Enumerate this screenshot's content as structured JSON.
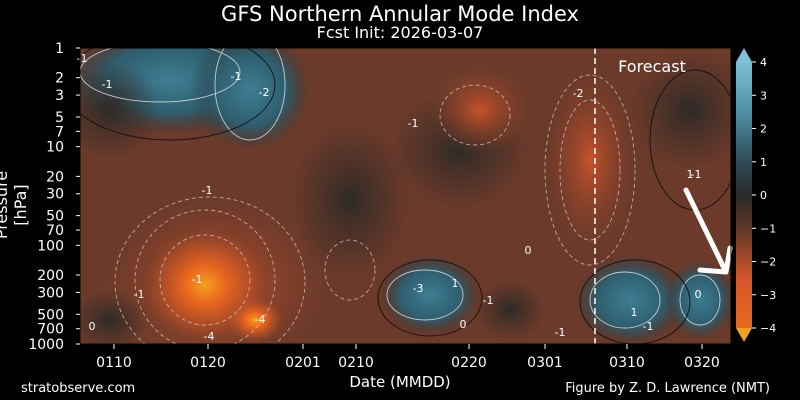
{
  "header": {
    "title": "GFS Northern Annular Mode Index",
    "subtitle": "Fcst Init: 2026-03-07"
  },
  "footer": {
    "left": "stratobserve.com",
    "right": "Figure by Z. D. Lawrence (NMT)"
  },
  "chart_data": {
    "type": "heatmap",
    "title": "GFS Northern Annular Mode Index",
    "subtitle": "Fcst Init: 2026-03-07",
    "xlabel": "Date (MMDD)",
    "ylabel": "Pressure [hPa]",
    "x_ticks": [
      "0110",
      "0120",
      "0201",
      "0210",
      "0220",
      "0301",
      "0310",
      "0320"
    ],
    "y_ticks": [
      1,
      2,
      3,
      5,
      7,
      10,
      20,
      30,
      50,
      70,
      100,
      200,
      300,
      500,
      700,
      1000
    ],
    "y_scale": "log",
    "y_inverted": true,
    "colorbar": {
      "ticks": [
        4,
        3,
        2,
        1,
        0,
        -1,
        -2,
        -3,
        -4
      ],
      "range": [
        -4,
        4
      ],
      "colors": {
        "positive": "#4f93ab",
        "neutral": "#2b2b2b",
        "negative": "#d8562a",
        "extreme_negative": "#f0a020"
      }
    },
    "forecast_line": {
      "date": "0307",
      "label": "Forecast"
    },
    "contour_labels": [
      "-1",
      "-1",
      "-1",
      "-2",
      "-1",
      "-1",
      "-2",
      "-1",
      "-1",
      "-4",
      "-4",
      "-3",
      "1",
      "-1",
      "0",
      "0",
      "-1",
      "0",
      "1",
      "-1",
      "0",
      "1",
      "-1",
      "0"
    ],
    "annotations": [
      {
        "type": "arrow",
        "direction": "down-right",
        "color": "#ffffff"
      }
    ]
  }
}
